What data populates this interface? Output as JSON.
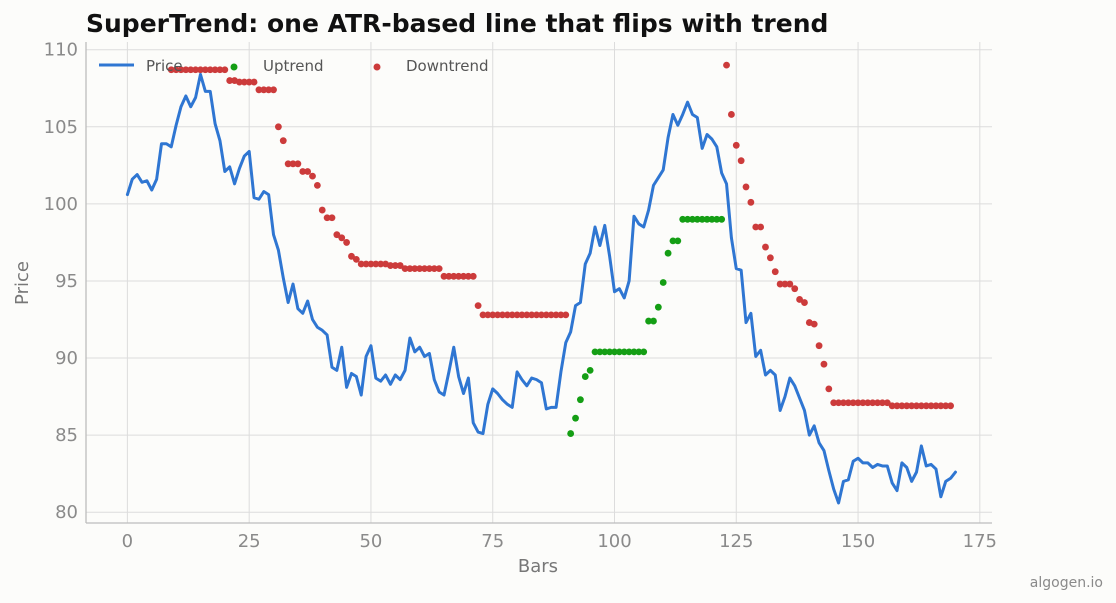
{
  "chart_data": {
    "type": "line",
    "title": "SuperTrend: one ATR-based line that flips with trend",
    "xlabel": "Bars",
    "ylabel": "Price",
    "xlim": [
      -8.5,
      177.5
    ],
    "ylim": [
      79.3,
      110.5
    ],
    "xticks": [
      0,
      25,
      50,
      75,
      100,
      125,
      150,
      175
    ],
    "yticks": [
      80,
      85,
      90,
      95,
      100,
      105,
      110
    ],
    "grid": true,
    "legend_position": "top-left",
    "colors": {
      "price": "#2f76d2",
      "uptrend": "#149e14",
      "downtrend": "#cc3b3b"
    },
    "series": [
      {
        "name": "Price",
        "style": "line",
        "x_start": 0,
        "values": [
          100.6,
          101.6,
          101.9,
          101.4,
          101.5,
          100.9,
          101.6,
          103.9,
          103.9,
          103.7,
          105.1,
          106.3,
          107.0,
          106.3,
          106.9,
          108.4,
          107.3,
          107.3,
          105.2,
          104.1,
          102.1,
          102.4,
          101.3,
          102.3,
          103.1,
          103.4,
          100.4,
          100.3,
          100.8,
          100.6,
          98.0,
          97.0,
          95.2,
          93.6,
          94.8,
          93.2,
          92.9,
          93.7,
          92.5,
          92.0,
          91.8,
          91.5,
          89.4,
          89.2,
          90.7,
          88.1,
          89.0,
          88.8,
          87.6,
          90.1,
          90.8,
          88.7,
          88.5,
          88.9,
          88.3,
          88.9,
          88.6,
          89.2,
          91.3,
          90.4,
          90.7,
          90.1,
          90.3,
          88.6,
          87.8,
          87.6,
          89.1,
          90.7,
          88.8,
          87.7,
          88.7,
          85.8,
          85.2,
          85.1,
          87.0,
          88.0,
          87.7,
          87.3,
          87.0,
          86.8,
          89.1,
          88.6,
          88.2,
          88.7,
          88.6,
          88.4,
          86.7,
          86.8,
          86.8,
          89.1,
          91.0,
          91.7,
          93.4,
          93.6,
          96.1,
          96.8,
          98.5,
          97.3,
          98.6,
          96.6,
          94.3,
          94.5,
          93.9,
          95.0,
          99.2,
          98.7,
          98.5,
          99.6,
          101.2,
          101.7,
          102.2,
          104.3,
          105.8,
          105.1,
          105.8,
          106.6,
          105.8,
          105.6,
          103.6,
          104.5,
          104.2,
          103.7,
          102.0,
          101.3,
          97.8,
          95.8,
          95.7,
          92.3,
          92.9,
          90.1,
          90.5,
          88.9,
          89.2,
          88.9,
          86.6,
          87.5,
          88.7,
          88.2,
          87.4,
          86.6,
          85.0,
          85.6,
          84.5,
          84.0,
          82.7,
          81.5,
          80.6,
          82.0,
          82.1,
          83.3,
          83.5,
          83.2,
          83.2,
          82.9,
          83.1,
          83.0,
          83.0,
          81.9,
          81.4,
          83.2,
          82.9,
          82.0,
          82.6,
          84.3,
          83.0,
          83.1,
          82.8,
          81.0,
          82.0,
          82.2,
          82.6
        ]
      },
      {
        "name": "Uptrend",
        "style": "dots",
        "points": [
          [
            91,
            85.1
          ],
          [
            92,
            86.1
          ],
          [
            93,
            87.3
          ],
          [
            94,
            88.8
          ],
          [
            95,
            89.2
          ],
          [
            96,
            90.4
          ],
          [
            97,
            90.4
          ],
          [
            98,
            90.4
          ],
          [
            99,
            90.4
          ],
          [
            100,
            90.4
          ],
          [
            101,
            90.4
          ],
          [
            102,
            90.4
          ],
          [
            103,
            90.4
          ],
          [
            104,
            90.4
          ],
          [
            105,
            90.4
          ],
          [
            106,
            90.4
          ],
          [
            107,
            92.4
          ],
          [
            108,
            92.4
          ],
          [
            109,
            93.3
          ],
          [
            110,
            94.9
          ],
          [
            111,
            96.8
          ],
          [
            112,
            97.6
          ],
          [
            113,
            97.6
          ],
          [
            114,
            99.0
          ],
          [
            115,
            99.0
          ],
          [
            116,
            99.0
          ],
          [
            117,
            99.0
          ],
          [
            118,
            99.0
          ],
          [
            119,
            99.0
          ],
          [
            120,
            99.0
          ],
          [
            121,
            99.0
          ],
          [
            122,
            99.0
          ]
        ]
      },
      {
        "name": "Downtrend",
        "style": "dots",
        "points": [
          [
            9,
            108.7
          ],
          [
            10,
            108.7
          ],
          [
            11,
            108.7
          ],
          [
            12,
            108.7
          ],
          [
            13,
            108.7
          ],
          [
            14,
            108.7
          ],
          [
            15,
            108.7
          ],
          [
            16,
            108.7
          ],
          [
            17,
            108.7
          ],
          [
            18,
            108.7
          ],
          [
            19,
            108.7
          ],
          [
            20,
            108.7
          ],
          [
            21,
            108.0
          ],
          [
            22,
            108.0
          ],
          [
            23,
            107.9
          ],
          [
            24,
            107.9
          ],
          [
            25,
            107.9
          ],
          [
            26,
            107.9
          ],
          [
            27,
            107.4
          ],
          [
            28,
            107.4
          ],
          [
            29,
            107.4
          ],
          [
            30,
            107.4
          ],
          [
            31,
            105.0
          ],
          [
            32,
            104.1
          ],
          [
            33,
            102.6
          ],
          [
            34,
            102.6
          ],
          [
            35,
            102.6
          ],
          [
            36,
            102.1
          ],
          [
            37,
            102.1
          ],
          [
            38,
            101.8
          ],
          [
            39,
            101.2
          ],
          [
            40,
            99.6
          ],
          [
            41,
            99.1
          ],
          [
            42,
            99.1
          ],
          [
            43,
            98.0
          ],
          [
            44,
            97.8
          ],
          [
            45,
            97.5
          ],
          [
            46,
            96.6
          ],
          [
            47,
            96.4
          ],
          [
            48,
            96.1
          ],
          [
            49,
            96.1
          ],
          [
            50,
            96.1
          ],
          [
            51,
            96.1
          ],
          [
            52,
            96.1
          ],
          [
            53,
            96.1
          ],
          [
            54,
            96.0
          ],
          [
            55,
            96.0
          ],
          [
            56,
            96.0
          ],
          [
            57,
            95.8
          ],
          [
            58,
            95.8
          ],
          [
            59,
            95.8
          ],
          [
            60,
            95.8
          ],
          [
            61,
            95.8
          ],
          [
            62,
            95.8
          ],
          [
            63,
            95.8
          ],
          [
            64,
            95.8
          ],
          [
            65,
            95.3
          ],
          [
            66,
            95.3
          ],
          [
            67,
            95.3
          ],
          [
            68,
            95.3
          ],
          [
            69,
            95.3
          ],
          [
            70,
            95.3
          ],
          [
            71,
            95.3
          ],
          [
            72,
            93.4
          ],
          [
            73,
            92.8
          ],
          [
            74,
            92.8
          ],
          [
            75,
            92.8
          ],
          [
            76,
            92.8
          ],
          [
            77,
            92.8
          ],
          [
            78,
            92.8
          ],
          [
            79,
            92.8
          ],
          [
            80,
            92.8
          ],
          [
            81,
            92.8
          ],
          [
            82,
            92.8
          ],
          [
            83,
            92.8
          ],
          [
            84,
            92.8
          ],
          [
            85,
            92.8
          ],
          [
            86,
            92.8
          ],
          [
            87,
            92.8
          ],
          [
            88,
            92.8
          ],
          [
            89,
            92.8
          ],
          [
            90,
            92.8
          ],
          [
            123,
            109.0
          ],
          [
            124,
            105.8
          ],
          [
            125,
            103.8
          ],
          [
            126,
            102.8
          ],
          [
            127,
            101.1
          ],
          [
            128,
            100.1
          ],
          [
            129,
            98.5
          ],
          [
            130,
            98.5
          ],
          [
            131,
            97.2
          ],
          [
            132,
            96.5
          ],
          [
            133,
            95.6
          ],
          [
            134,
            94.8
          ],
          [
            135,
            94.8
          ],
          [
            136,
            94.8
          ],
          [
            137,
            94.5
          ],
          [
            138,
            93.8
          ],
          [
            139,
            93.6
          ],
          [
            140,
            92.3
          ],
          [
            141,
            92.2
          ],
          [
            142,
            90.8
          ],
          [
            143,
            89.6
          ],
          [
            144,
            88.0
          ],
          [
            145,
            87.1
          ],
          [
            146,
            87.1
          ],
          [
            147,
            87.1
          ],
          [
            148,
            87.1
          ],
          [
            149,
            87.1
          ],
          [
            150,
            87.1
          ],
          [
            151,
            87.1
          ],
          [
            152,
            87.1
          ],
          [
            153,
            87.1
          ],
          [
            154,
            87.1
          ],
          [
            155,
            87.1
          ],
          [
            156,
            87.1
          ],
          [
            157,
            86.9
          ],
          [
            158,
            86.9
          ],
          [
            159,
            86.9
          ],
          [
            160,
            86.9
          ],
          [
            161,
            86.9
          ],
          [
            162,
            86.9
          ],
          [
            163,
            86.9
          ],
          [
            164,
            86.9
          ],
          [
            165,
            86.9
          ],
          [
            166,
            86.9
          ],
          [
            167,
            86.9
          ],
          [
            168,
            86.9
          ],
          [
            169,
            86.9
          ]
        ]
      }
    ]
  },
  "watermark": "algogen.io"
}
